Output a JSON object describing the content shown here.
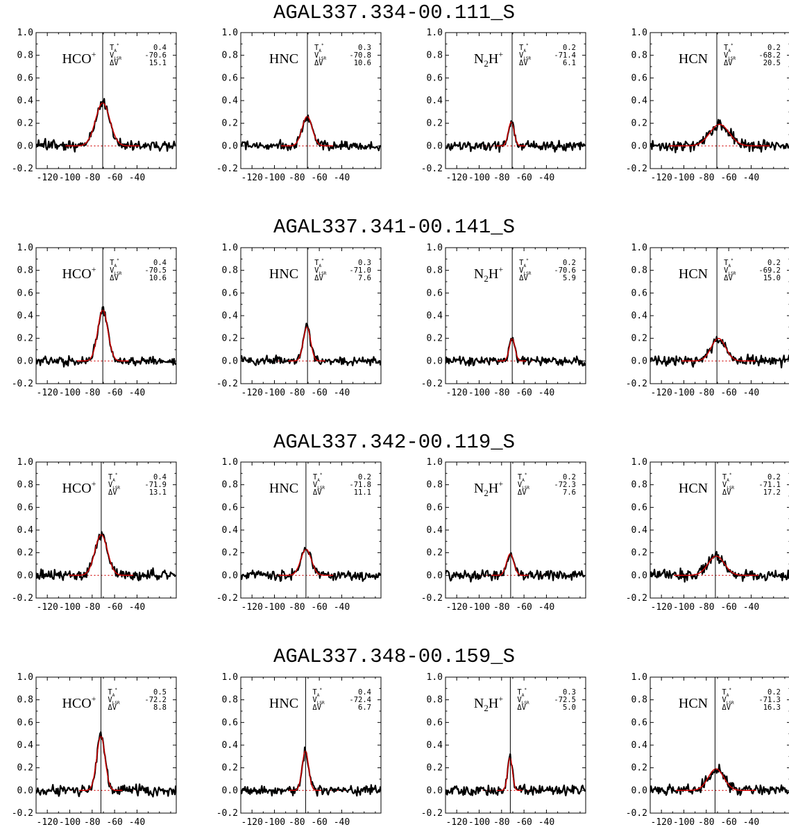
{
  "figure": {
    "line_color": "#000000",
    "fit_color": "#d00000",
    "baseline_color": "#d00000"
  },
  "chart_data": {
    "type": "line",
    "xlim": [
      -130,
      -5
    ],
    "ylim": [
      -0.2,
      1.0
    ],
    "x_ticks": [
      -120,
      -100,
      -80,
      -60,
      -40
    ],
    "x_tick_labels": [
      "-120",
      "-100",
      "-80",
      "-60",
      "-40"
    ],
    "y_ticks": [
      -0.2,
      0.0,
      0.2,
      0.4,
      0.6,
      0.8,
      1.0
    ],
    "y_tick_labels": [
      "-0.2",
      "0.0",
      "0.2",
      "0.4",
      "0.6",
      "0.8",
      "1.0"
    ],
    "param_labels": {
      "t": "T",
      "t_sub": "A",
      "t_sup": "*",
      "v": "V",
      "v_sub": "LSR",
      "dv": "ΔV"
    },
    "sources": [
      {
        "name": "AGAL337.334-00.111_S",
        "vlsr_marker": -70.6,
        "panels": [
          {
            "mol": "HCO",
            "sub": "",
            "sup": "+",
            "ta": "0.4",
            "vlsr": "-70.6",
            "dv": "15.1",
            "peak": 0.38,
            "center": -70.6,
            "width": 15.1,
            "seed": 11,
            "noise": 0.03
          },
          {
            "mol": "HNC",
            "sub": "",
            "sup": "",
            "ta": "0.3",
            "vlsr": "-70.8",
            "dv": "10.6",
            "peak": 0.26,
            "center": -70.8,
            "width": 10.6,
            "seed": 12,
            "noise": 0.028
          },
          {
            "mol": "N",
            "sub": "2",
            "sup": "+",
            "ta": "0.2",
            "vlsr": "-71.4",
            "dv": "6.1",
            "peak": 0.21,
            "center": -71.4,
            "width": 6.1,
            "seed": 13,
            "noise": 0.028
          },
          {
            "mol": "HCN",
            "sub": "",
            "sup": "",
            "ta": "0.2",
            "vlsr": "-68.2",
            "dv": "20.5",
            "peak": 0.19,
            "center": -68.2,
            "width": 20.5,
            "seed": 14,
            "noise": 0.03
          }
        ]
      },
      {
        "name": "AGAL337.341-00.141_S",
        "vlsr_marker": -70.5,
        "panels": [
          {
            "mol": "HCO",
            "sub": "",
            "sup": "+",
            "ta": "0.4",
            "vlsr": "-70.5",
            "dv": "10.6",
            "peak": 0.45,
            "center": -70.5,
            "width": 10.6,
            "seed": 21,
            "noise": 0.025
          },
          {
            "mol": "HNC",
            "sub": "",
            "sup": "",
            "ta": "0.3",
            "vlsr": "-71.0",
            "dv": "7.6",
            "peak": 0.3,
            "center": -71.0,
            "width": 7.6,
            "seed": 22,
            "noise": 0.025
          },
          {
            "mol": "N",
            "sub": "2",
            "sup": "+",
            "ta": "0.2",
            "vlsr": "-70.6",
            "dv": "5.9",
            "peak": 0.2,
            "center": -70.6,
            "width": 5.9,
            "seed": 23,
            "noise": 0.025
          },
          {
            "mol": "HCN",
            "sub": "",
            "sup": "",
            "ta": "0.2",
            "vlsr": "-69.2",
            "dv": "15.0",
            "peak": 0.2,
            "center": -69.2,
            "width": 15.0,
            "seed": 24,
            "noise": 0.028
          }
        ]
      },
      {
        "name": "AGAL337.342-00.119_S",
        "vlsr_marker": -71.9,
        "panels": [
          {
            "mol": "HCO",
            "sub": "",
            "sup": "+",
            "ta": "0.4",
            "vlsr": "-71.9",
            "dv": "13.1",
            "peak": 0.36,
            "center": -71.9,
            "width": 13.1,
            "seed": 31,
            "noise": 0.03
          },
          {
            "mol": "HNC",
            "sub": "",
            "sup": "",
            "ta": "0.2",
            "vlsr": "-71.8",
            "dv": "11.1",
            "peak": 0.23,
            "center": -71.8,
            "width": 11.1,
            "seed": 32,
            "noise": 0.027
          },
          {
            "mol": "N",
            "sub": "2",
            "sup": "+",
            "ta": "0.2",
            "vlsr": "-72.3",
            "dv": "7.6",
            "peak": 0.19,
            "center": -72.3,
            "width": 7.6,
            "seed": 33,
            "noise": 0.027
          },
          {
            "mol": "HCN",
            "sub": "",
            "sup": "",
            "ta": "0.2",
            "vlsr": "-71.1",
            "dv": "17.2",
            "peak": 0.17,
            "center": -71.1,
            "width": 17.2,
            "seed": 34,
            "noise": 0.028
          }
        ]
      },
      {
        "name": "AGAL337.348-00.159_S",
        "vlsr_marker": -72.2,
        "panels": [
          {
            "mol": "HCO",
            "sub": "",
            "sup": "+",
            "ta": "0.5",
            "vlsr": "-72.2",
            "dv": "8.8",
            "peak": 0.48,
            "center": -72.2,
            "width": 8.8,
            "seed": 41,
            "noise": 0.027
          },
          {
            "mol": "HNC",
            "sub": "",
            "sup": "",
            "ta": "0.4",
            "vlsr": "-72.4",
            "dv": "6.7",
            "peak": 0.35,
            "center": -72.4,
            "width": 6.7,
            "seed": 42,
            "noise": 0.025
          },
          {
            "mol": "N",
            "sub": "2",
            "sup": "+",
            "ta": "0.3",
            "vlsr": "-72.5",
            "dv": "5.0",
            "peak": 0.29,
            "center": -72.5,
            "width": 5.0,
            "seed": 43,
            "noise": 0.027
          },
          {
            "mol": "HCN",
            "sub": "",
            "sup": "",
            "ta": "0.2",
            "vlsr": "-71.3",
            "dv": "16.3",
            "peak": 0.19,
            "center": -71.3,
            "width": 16.3,
            "seed": 44,
            "noise": 0.03
          }
        ]
      }
    ]
  }
}
